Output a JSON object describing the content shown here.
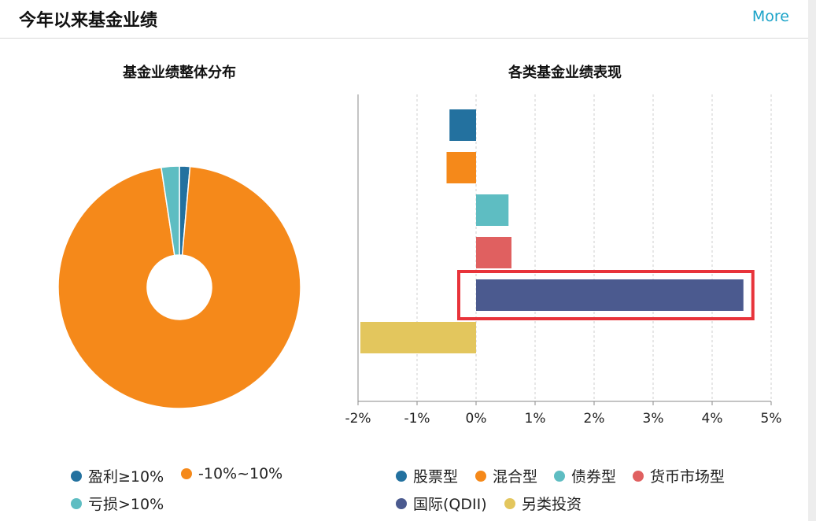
{
  "header": {
    "title": "今年以来基金业绩",
    "more_label": "More"
  },
  "chart_data": [
    {
      "type": "pie",
      "title": "基金业绩整体分布",
      "donut": true,
      "slices": [
        {
          "label": "盈利≥10%",
          "value": 1.4,
          "color": "#23719f"
        },
        {
          "label": "-10%~10%",
          "value": 96.2,
          "color": "#f5891a"
        },
        {
          "label": "亏损>10%",
          "value": 2.4,
          "color": "#5ebdc2"
        }
      ],
      "legend": [
        "盈利≥10%",
        "-10%~10%",
        "亏损>10%"
      ]
    },
    {
      "type": "bar",
      "orientation": "horizontal",
      "title": "各类基金业绩表现",
      "categories": [
        "股票型",
        "混合型",
        "债券型",
        "货币市场型",
        "国际(QDII)",
        "另类投资"
      ],
      "values": [
        -0.45,
        -0.5,
        0.55,
        0.6,
        4.53,
        -1.96
      ],
      "colors": [
        "#23719f",
        "#f5891a",
        "#5ebdc2",
        "#e06060",
        "#4b5a8f",
        "#e3c65d"
      ],
      "xlim": [
        -2,
        5
      ],
      "ticks": [
        -2,
        -1,
        0,
        1,
        2,
        3,
        4,
        5
      ],
      "tick_labels": [
        "-2%",
        "-1%",
        "0%",
        "1%",
        "2%",
        "3%",
        "4%",
        "5%"
      ],
      "highlight_category": "国际(QDII)",
      "highlight_color": "#e8333a",
      "grid": true,
      "legend": [
        "股票型",
        "混合型",
        "债券型",
        "货币市场型",
        "国际(QDII)",
        "另类投资"
      ]
    }
  ]
}
